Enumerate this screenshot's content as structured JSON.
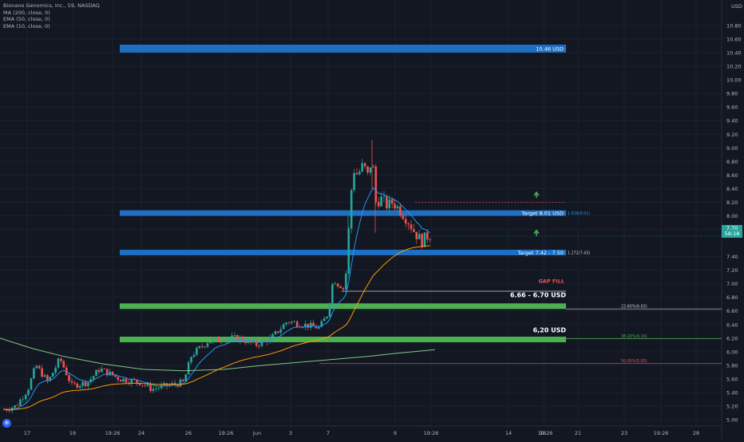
{
  "legend": {
    "title": "Bionano Genomics, Inc., 59, NASDAQ",
    "indicators": [
      "MA (200, close, 0)",
      "EMA (50, close, 0)",
      "EMA (10, close, 0)"
    ]
  },
  "axis": {
    "currency": "USD",
    "y_ticks": [
      "10.80",
      "10.60",
      "10.40",
      "10.20",
      "10.00",
      "9.80",
      "9.60",
      "9.40",
      "9.20",
      "9.00",
      "8.80",
      "8.60",
      "8.40",
      "8.20",
      "8.00",
      "7.80",
      "7.40",
      "7.20",
      "7.00",
      "6.80",
      "6.60",
      "6.40",
      "6.20",
      "6.00",
      "5.80",
      "5.60",
      "5.40",
      "5.20",
      "5.00"
    ],
    "x_ticks": [
      "17",
      "19",
      "19:26",
      "24",
      "26",
      "19:26",
      "Jun",
      "3",
      "7",
      "9",
      "19:26",
      "14",
      "16",
      "19:26",
      "21",
      "23",
      "19:26",
      "28"
    ]
  },
  "current_price": {
    "price": "7.70",
    "countdown": "58:18"
  },
  "zones": [
    {
      "label": "10.46 USD",
      "price": 10.46,
      "color": "#1e6fc2"
    },
    {
      "label": "Target 8.01 USD",
      "price": 8.04,
      "color": "#1e6fc2"
    },
    {
      "label": "Target 7.42 - 7.50",
      "price": 7.46,
      "color": "#1e6fc2"
    },
    {
      "label": "6.66 - 6.70 USD",
      "price": 6.67,
      "color": "#4caf50"
    },
    {
      "label": "6,20 USD",
      "price": 6.18,
      "color": "#4caf50"
    }
  ],
  "annotations": {
    "gap_fill": "GAP FILL",
    "fib_1618": "1.618(8.01)",
    "fib_1272": "1.272(7.43)",
    "fib_236": "23.60%(6.63)",
    "fib_382": "38.20%(6.19)",
    "fib_50": "50.00%(5.83)"
  },
  "colors": {
    "up": "#26a69a",
    "down": "#ef5350",
    "ma200": "#81c784",
    "ema50": "#ff9800",
    "ema10": "#2196f3",
    "gap_fill": "#ef5350",
    "fib_236": "#d1d4dc",
    "fib_382": "#4caf50",
    "fib_50": "#ef5350",
    "arrow": "#4caf50"
  },
  "chart_data": {
    "type": "candlestick",
    "title": "Bionano Genomics, Inc., 59, NASDAQ",
    "y_unit": "USD",
    "ylim": [
      4.95,
      10.95
    ],
    "approx_close_path": [
      {
        "date": "May 17",
        "close": 5.15
      },
      {
        "date": "May 19",
        "close": 5.55
      },
      {
        "date": "May 24",
        "close": 5.5
      },
      {
        "date": "May 26",
        "close": 5.9
      },
      {
        "date": "Jun 1",
        "close": 6.15
      },
      {
        "date": "Jun 3",
        "close": 6.35
      },
      {
        "date": "Jun 4",
        "close": 7.1
      },
      {
        "date": "Jun 7",
        "close": 8.75
      },
      {
        "date": "Jun 8",
        "close": 8.3
      },
      {
        "date": "Jun 9",
        "close": 8.1
      },
      {
        "date": "Jun 10",
        "close": 7.7
      }
    ],
    "series": [
      {
        "name": "MA (200, close, 0)"
      },
      {
        "name": "EMA (50, close, 0)"
      },
      {
        "name": "EMA (10, close, 0)"
      }
    ],
    "grid": true
  }
}
